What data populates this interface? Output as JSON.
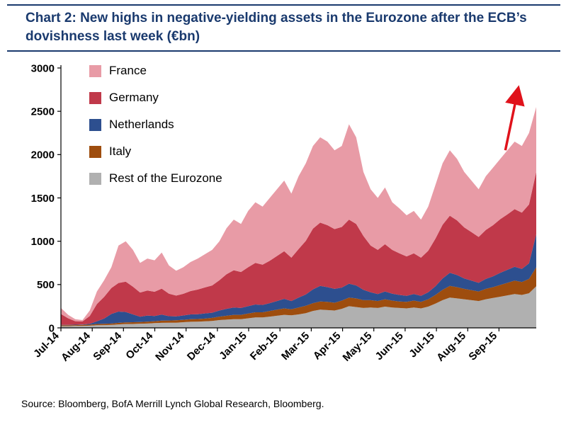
{
  "header": {
    "title": "Chart 2: New highs in negative-yielding assets in the Eurozone after the ECB’s dovishness last week (€bn)"
  },
  "footer": {
    "source": "Source: Bloomberg, BofA Merrill Lynch Global Research, Bloomberg."
  },
  "colors": {
    "title_navy": "#1a3a6e",
    "arrow_red": "#e0121b",
    "axis_black": "#000000"
  },
  "chart_data": {
    "type": "area",
    "stacked": true,
    "title": "Chart 2: New highs in negative-yielding assets in the Eurozone after the ECB’s dovishness last week (€bn)",
    "xlabel": "",
    "ylabel": "",
    "ylim": [
      0,
      3000
    ],
    "y_ticks": [
      0,
      500,
      1000,
      1500,
      2000,
      2500,
      3000
    ],
    "grid": false,
    "legend_position": "top-left-inside",
    "x_labels": [
      "Jul-14",
      "Aug-14",
      "Sep-14",
      "Oct-14",
      "Nov-14",
      "Dec-14",
      "Jan-15",
      "Feb-15",
      "Mar-15",
      "Apr-15",
      "May-15",
      "Jun-15",
      "Jul-15",
      "Aug-15",
      "Sep-15"
    ],
    "x_tick_interval_weeks": 4.345,
    "x_unit": "weeks",
    "series": [
      {
        "name": "France",
        "color": "#e89ba6",
        "values": [
          70,
          40,
          23,
          16,
          63,
          145,
          193,
          240,
          432,
          467,
          425,
          342,
          368,
          363,
          417,
          325,
          287,
          307,
          335,
          358,
          383,
          410,
          450,
          530,
          585,
          555,
          650,
          700,
          670,
          725,
          770,
          815,
          740,
          840,
          895,
          955,
          985,
          965,
          910,
          935,
          1100,
          1000,
          740,
          650,
          600,
          655,
          550,
          520,
          475,
          490,
          440,
          510,
          620,
          710,
          755,
          710,
          640,
          595,
          550,
          620,
          665,
          695,
          740,
          780,
          770,
          825,
          750
        ]
      },
      {
        "name": "Germany",
        "color": "#c0394a",
        "values": [
          125,
          75,
          40,
          35,
          90,
          200,
          250,
          300,
          330,
          350,
          320,
          280,
          290,
          280,
          300,
          260,
          240,
          250,
          270,
          285,
          300,
          315,
          350,
          400,
          430,
          415,
          450,
          480,
          465,
          490,
          520,
          550,
          500,
          560,
          620,
          700,
          730,
          715,
          690,
          700,
          740,
          710,
          620,
          540,
          510,
          545,
          505,
          480,
          455,
          470,
          440,
          480,
          550,
          620,
          660,
          630,
          590,
          560,
          530,
          565,
          590,
          620,
          640,
          665,
          650,
          680,
          720
        ]
      },
      {
        "name": "Netherlands",
        "color": "#2d4f8f",
        "values": [
          5,
          5,
          5,
          5,
          10,
          30,
          60,
          110,
          130,
          120,
          90,
          60,
          70,
          60,
          70,
          50,
          45,
          50,
          55,
          55,
          60,
          60,
          70,
          80,
          85,
          80,
          85,
          90,
          85,
          90,
          100,
          110,
          95,
          115,
          130,
          160,
          180,
          170,
          160,
          150,
          160,
          150,
          120,
          90,
          80,
          90,
          80,
          75,
          70,
          75,
          70,
          80,
          100,
          130,
          150,
          140,
          120,
          110,
          100,
          115,
          125,
          140,
          150,
          160,
          150,
          180,
          380
        ]
      },
      {
        "name": "Italy",
        "color": "#9e4d0e",
        "values": [
          10,
          10,
          10,
          12,
          12,
          15,
          15,
          15,
          18,
          18,
          20,
          20,
          22,
          22,
          25,
          25,
          28,
          28,
          30,
          30,
          32,
          35,
          40,
          45,
          50,
          50,
          55,
          60,
          60,
          65,
          70,
          75,
          70,
          80,
          85,
          90,
          95,
          95,
          90,
          95,
          100,
          100,
          90,
          85,
          80,
          85,
          80,
          75,
          75,
          80,
          75,
          85,
          100,
          120,
          135,
          130,
          120,
          115,
          110,
          120,
          125,
          135,
          145,
          155,
          150,
          165,
          220
        ]
      },
      {
        "name": "Rest of the Eurozone",
        "color": "#b0b0b0",
        "values": [
          20,
          20,
          22,
          22,
          25,
          30,
          32,
          35,
          40,
          45,
          45,
          48,
          50,
          55,
          58,
          60,
          60,
          65,
          70,
          72,
          75,
          80,
          90,
          95,
          100,
          100,
          110,
          120,
          120,
          130,
          140,
          150,
          145,
          155,
          170,
          195,
          210,
          205,
          200,
          220,
          250,
          240,
          230,
          235,
          230,
          245,
          235,
          230,
          225,
          235,
          225,
          245,
          280,
          320,
          350,
          340,
          330,
          320,
          310,
          330,
          345,
          360,
          375,
          390,
          380,
          400,
          480
        ]
      }
    ],
    "annotation_arrow": {
      "color": "#e0121b",
      "x_start_fraction": 0.935,
      "x_end_fraction": 0.962,
      "value_start": 2050,
      "value_end": 2760
    }
  }
}
